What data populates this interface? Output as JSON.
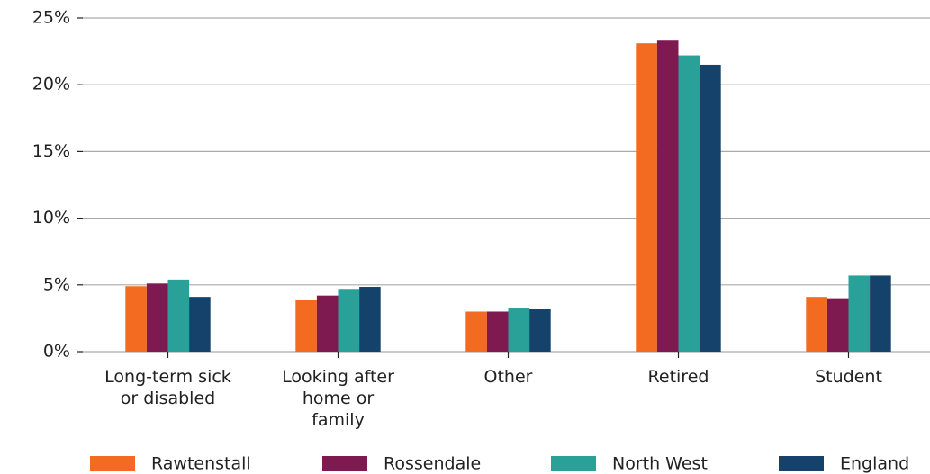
{
  "chart_data": {
    "type": "bar",
    "categories": [
      "Long-term sick\nor disabled",
      "Looking after\nhome or\nfamily",
      "Other",
      "Retired",
      "Student"
    ],
    "series": [
      {
        "name": "Rawtenstall",
        "color": "#f26b21",
        "values": [
          4.9,
          3.9,
          3.0,
          23.1,
          4.1
        ]
      },
      {
        "name": "Rossendale",
        "color": "#7e1a4f",
        "values": [
          5.1,
          4.2,
          3.0,
          23.3,
          4.0
        ]
      },
      {
        "name": "North West",
        "color": "#2aa198",
        "values": [
          5.4,
          4.7,
          3.3,
          22.2,
          5.7
        ]
      },
      {
        "name": "England",
        "color": "#15426a",
        "values": [
          4.1,
          4.85,
          3.2,
          21.5,
          5.7
        ]
      }
    ],
    "ylim": [
      0,
      25
    ],
    "yticks": [
      {
        "value": 0,
        "label": "0%"
      },
      {
        "value": 5,
        "label": "5%"
      },
      {
        "value": 10,
        "label": "10%"
      },
      {
        "value": 15,
        "label": "15%"
      },
      {
        "value": 20,
        "label": "20%"
      },
      {
        "value": 25,
        "label": "25%"
      }
    ],
    "grid": true,
    "legend": "bottom"
  }
}
